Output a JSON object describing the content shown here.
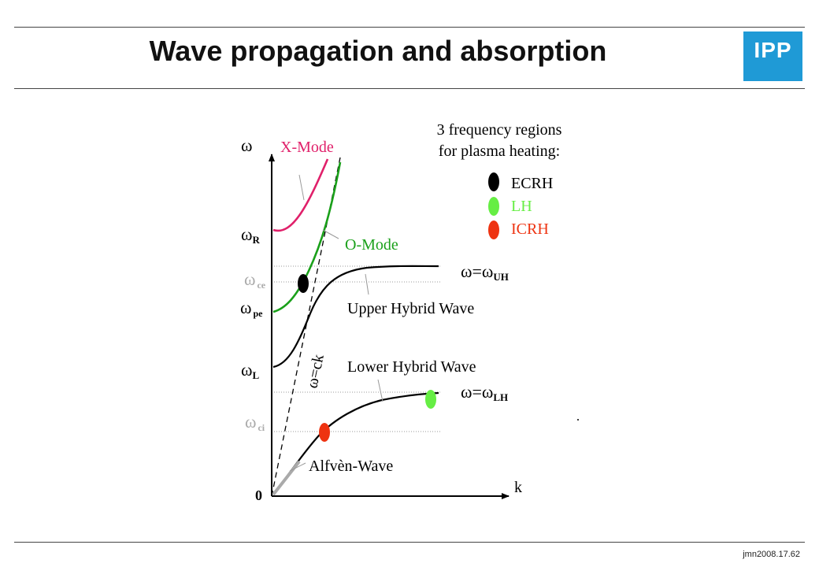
{
  "slide": {
    "title": "Wave propagation and absorption",
    "logo_text": "IPP",
    "footer": "jmn2008.17.62"
  },
  "diagram": {
    "axis_labels": {
      "y": "ω",
      "x": "k",
      "origin": "0"
    },
    "frequency_marks": {
      "omega_R": {
        "base": "ω",
        "sub": "R"
      },
      "omega_ce": {
        "base": "ω",
        "sub": "ce"
      },
      "omega_pe": {
        "base": "ω",
        "sub": "pe"
      },
      "omega_L": {
        "base": "ω",
        "sub": "L"
      },
      "omega_ci": {
        "base": "ω",
        "sub": "ci"
      }
    },
    "asymptote_labels": {
      "uh": {
        "base": "ω=ω",
        "sub": "UH"
      },
      "lh": {
        "base": "ω=ω",
        "sub": "LH"
      }
    },
    "light_line_label": "ω=ck",
    "wave_labels": {
      "x_mode": "X-Mode",
      "o_mode": "O-Mode",
      "upper_hybrid": "Upper Hybrid Wave",
      "lower_hybrid": "Lower Hybrid Wave",
      "alfven": "Alfvèn-Wave"
    },
    "heating": {
      "heading_line1": "3 frequency regions",
      "heading_line2": "for plasma heating:",
      "items": [
        {
          "label": "ECRH",
          "color": "#000000"
        },
        {
          "label": "LH",
          "color": "#66ee44"
        },
        {
          "label": "ICRH",
          "color": "#ee3311"
        }
      ]
    },
    "colors": {
      "x_mode": "#e0206a",
      "o_mode": "#1aa01a",
      "curve": "#000000",
      "dim_text": "#aaaaaa",
      "alfven": "#aaaaaa"
    }
  }
}
